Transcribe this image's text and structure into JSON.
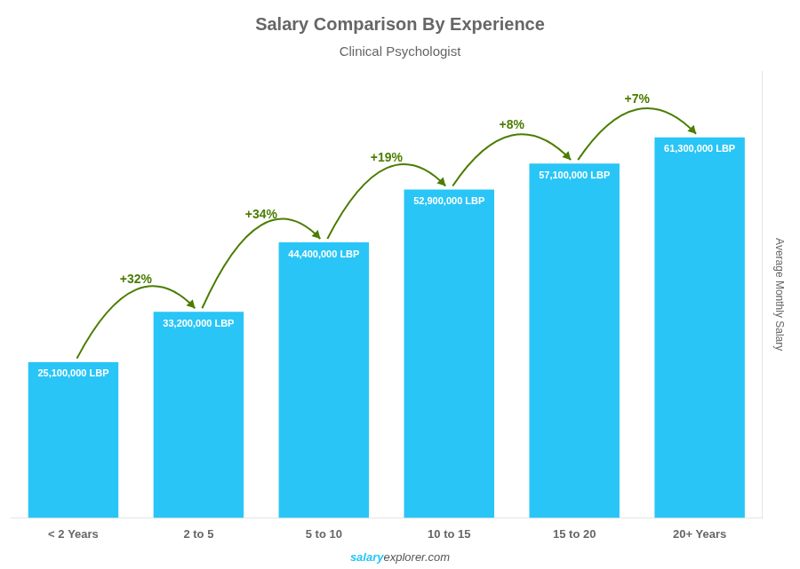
{
  "chart_data": {
    "type": "bar",
    "title": "Salary Comparison By Experience",
    "subtitle": "Clinical Psychologist",
    "categories": [
      "< 2 Years",
      "2 to 5",
      "5 to 10",
      "10 to 15",
      "15 to 20",
      "20+ Years"
    ],
    "values": [
      25100000,
      33200000,
      44400000,
      52900000,
      57100000,
      61300000
    ],
    "value_labels": [
      "25,100,000 LBP",
      "33,200,000 LBP",
      "44,400,000 LBP",
      "52,900,000 LBP",
      "57,100,000 LBP",
      "61,300,000 LBP"
    ],
    "data_labels": true,
    "color": "#29C5F6",
    "ylabel": "Average Monthly Salary",
    "ylim": [
      0,
      72000000
    ],
    "tick_labels": "x",
    "grid": false,
    "annotations": [
      {
        "from": "< 2 Years",
        "to": "2 to 5",
        "text": "+32%"
      },
      {
        "from": "2 to 5",
        "to": "5 to 10",
        "text": "+34%"
      },
      {
        "from": "5 to 10",
        "to": "10 to 15",
        "text": "+19%"
      },
      {
        "from": "10 to 15",
        "to": "15 to 20",
        "text": "+8%"
      },
      {
        "from": "15 to 20",
        "to": "20+ Years",
        "text": "+7%"
      }
    ],
    "watermark": [
      "salary",
      "explorer.com"
    ]
  }
}
